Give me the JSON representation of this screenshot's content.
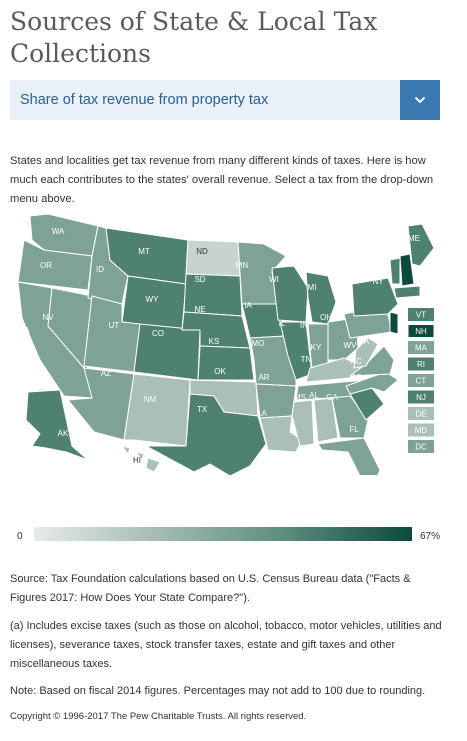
{
  "page": {
    "title": "Sources of State & Local Tax Collections"
  },
  "selector": {
    "label": "Share of tax revenue from property tax",
    "icon": "chevron-down-icon"
  },
  "intro": "States and localities get tax revenue from many different kinds of taxes. Here is how much each contributes to the states' overall revenue. Select a tax from the drop-down menu above.",
  "map": {
    "states": [
      "WA",
      "OR",
      "CA",
      "NV",
      "ID",
      "MT",
      "WY",
      "UT",
      "AZ",
      "CO",
      "NM",
      "ND",
      "SD",
      "NE",
      "KS",
      "OK",
      "TX",
      "MN",
      "IA",
      "MO",
      "AR",
      "LA",
      "WI",
      "IL",
      "MI",
      "IN",
      "OH",
      "KY",
      "TN",
      "MS",
      "AL",
      "GA",
      "FL",
      "SC",
      "NC",
      "VA",
      "WV",
      "PA",
      "NY",
      "ME",
      "AK",
      "HI"
    ],
    "northeast_boxes": [
      "VT",
      "NH",
      "MA",
      "RI",
      "CT",
      "NJ",
      "DE",
      "MD",
      "DC"
    ],
    "highlight_state": "NH",
    "colors": {
      "darkest": "#0b4a3d",
      "dark": "#4f8171",
      "mid": "#7ea395",
      "light": "#a9bfb8",
      "lightest": "#c6d3ce"
    }
  },
  "legend": {
    "min_label": "0",
    "max_label": "67%"
  },
  "notes": {
    "source": "Source: Tax Foundation calculations based on U.S. Census Bureau data (\"Facts & Figures 2017: How Does Your State Compare?\").",
    "footnote_a": "(a) Includes excise taxes (such as those on alcohol, tobacco, motor vehicles, utilities and licenses), severance taxes, stock transfer taxes, estate and gift taxes and other miscellaneous taxes.",
    "fiscal": "Note: Based on fiscal 2014 figures. Percentages may not add to 100 due to rounding."
  },
  "copyright": "Copyright © 1996-2017 The Pew Charitable Trusts. All rights reserved."
}
